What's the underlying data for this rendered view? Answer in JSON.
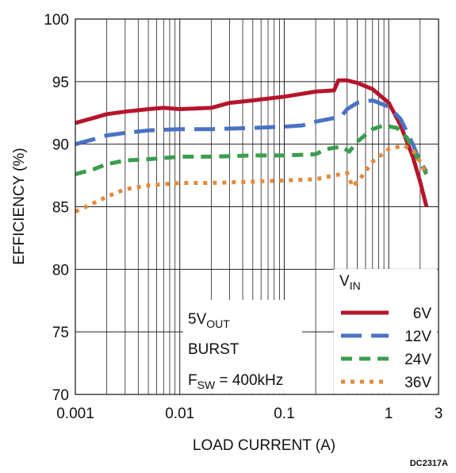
{
  "figure_id": "DC2317A",
  "chart_data": {
    "type": "line",
    "xlabel": "LOAD CURRENT (A)",
    "ylabel": "EFFICIENCY (%)",
    "x_scale": "log",
    "xlim": [
      0.001,
      3
    ],
    "ylim": [
      70,
      100
    ],
    "x_tick_labels": [
      "0.001",
      "0.01",
      "0.1",
      "1",
      "3"
    ],
    "x_tick_values": [
      0.001,
      0.01,
      0.1,
      1,
      3
    ],
    "y_ticks": [
      70,
      75,
      80,
      85,
      90,
      95,
      100
    ],
    "grid": true,
    "legend": {
      "title_main": "V",
      "title_sub": "IN",
      "placement": "bottom-right"
    },
    "annotations": {
      "line1_main": "5V",
      "line1_sub": "OUT",
      "line2": "BURST",
      "line3_main": "F",
      "line3_sub": "SW",
      "line3_rest": " = 400kHz"
    },
    "series": [
      {
        "name": "6V",
        "color": "#b5152b",
        "dash": "solid",
        "points": [
          [
            0.001,
            91.7
          ],
          [
            0.0015,
            92.1
          ],
          [
            0.002,
            92.4
          ],
          [
            0.003,
            92.6
          ],
          [
            0.005,
            92.8
          ],
          [
            0.007,
            92.9
          ],
          [
            0.01,
            92.8
          ],
          [
            0.02,
            92.9
          ],
          [
            0.03,
            93.3
          ],
          [
            0.05,
            93.5
          ],
          [
            0.1,
            93.8
          ],
          [
            0.2,
            94.2
          ],
          [
            0.3,
            94.3
          ],
          [
            0.33,
            95.1
          ],
          [
            0.4,
            95.1
          ],
          [
            0.5,
            94.9
          ],
          [
            0.7,
            94.4
          ],
          [
            1.0,
            93.3
          ],
          [
            1.3,
            91.5
          ],
          [
            1.7,
            89.0
          ],
          [
            2.0,
            87.0
          ],
          [
            2.3,
            85.0
          ]
        ]
      },
      {
        "name": "12V",
        "color": "#4a72c4",
        "dash": "long",
        "points": [
          [
            0.001,
            90.0
          ],
          [
            0.0015,
            90.4
          ],
          [
            0.002,
            90.7
          ],
          [
            0.003,
            90.9
          ],
          [
            0.005,
            91.1
          ],
          [
            0.01,
            91.2
          ],
          [
            0.02,
            91.2
          ],
          [
            0.05,
            91.3
          ],
          [
            0.1,
            91.4
          ],
          [
            0.15,
            91.5
          ],
          [
            0.2,
            91.8
          ],
          [
            0.35,
            92.2
          ],
          [
            0.4,
            92.8
          ],
          [
            0.5,
            93.3
          ],
          [
            0.7,
            93.5
          ],
          [
            1.0,
            93.0
          ],
          [
            1.3,
            92.0
          ],
          [
            1.7,
            90.0
          ],
          [
            2.0,
            88.6
          ],
          [
            2.3,
            87.8
          ]
        ]
      },
      {
        "name": "24V",
        "color": "#3a9e4f",
        "dash": "medium",
        "points": [
          [
            0.001,
            87.6
          ],
          [
            0.0015,
            88.0
          ],
          [
            0.002,
            88.4
          ],
          [
            0.003,
            88.7
          ],
          [
            0.005,
            88.8
          ],
          [
            0.01,
            89.0
          ],
          [
            0.02,
            89.0
          ],
          [
            0.05,
            89.1
          ],
          [
            0.1,
            89.1
          ],
          [
            0.2,
            89.2
          ],
          [
            0.25,
            89.6
          ],
          [
            0.35,
            89.8
          ],
          [
            0.42,
            89.4
          ],
          [
            0.5,
            90.2
          ],
          [
            0.7,
            91.2
          ],
          [
            0.9,
            91.5
          ],
          [
            1.2,
            91.3
          ],
          [
            1.5,
            90.5
          ],
          [
            1.8,
            89.2
          ],
          [
            2.3,
            87.6
          ]
        ]
      },
      {
        "name": "36V",
        "color": "#e38a3c",
        "dash": "dot",
        "points": [
          [
            0.001,
            84.6
          ],
          [
            0.0015,
            85.3
          ],
          [
            0.002,
            85.8
          ],
          [
            0.003,
            86.4
          ],
          [
            0.005,
            86.7
          ],
          [
            0.01,
            86.9
          ],
          [
            0.02,
            86.9
          ],
          [
            0.05,
            87.0
          ],
          [
            0.1,
            87.1
          ],
          [
            0.2,
            87.2
          ],
          [
            0.3,
            87.5
          ],
          [
            0.4,
            87.7
          ],
          [
            0.45,
            86.6
          ],
          [
            0.55,
            87.4
          ],
          [
            0.7,
            88.6
          ],
          [
            1.0,
            89.6
          ],
          [
            1.4,
            89.9
          ],
          [
            1.8,
            89.3
          ],
          [
            2.3,
            87.6
          ]
        ]
      }
    ]
  }
}
